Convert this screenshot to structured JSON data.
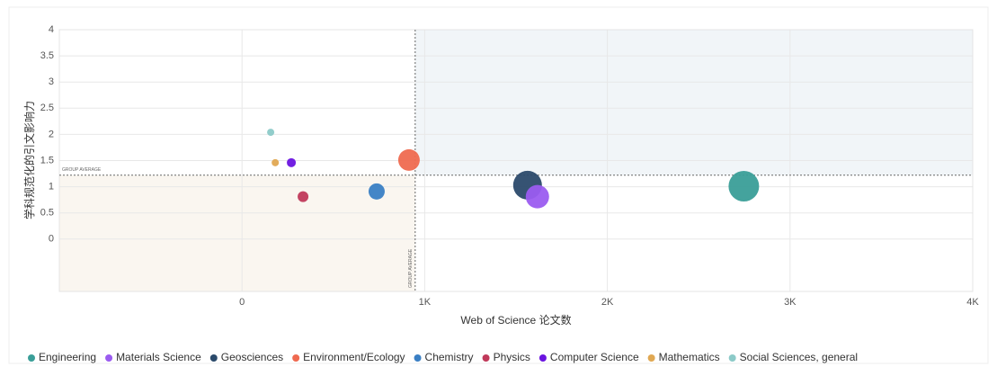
{
  "chart_data": {
    "type": "scatter",
    "xlabel": "Web of Science 论文数",
    "ylabel": "学科规范化的引文影响力",
    "xlim": [
      -1000,
      4000
    ],
    "xticks": [
      0,
      {
        "value": 1000,
        "label": "1K"
      },
      {
        "value": 2000,
        "label": "2K"
      },
      {
        "value": 3000,
        "label": "3K"
      },
      {
        "value": 4000,
        "label": "4K"
      }
    ],
    "ylim": [
      -1,
      4
    ],
    "yticks": [
      0,
      0.5,
      1,
      1.5,
      2,
      2.5,
      3,
      3.5,
      4
    ],
    "grid": true,
    "average_label": "GROUP AVERAGE",
    "x_average": 948,
    "y_average": 1.22,
    "series": [
      {
        "name": "Engineering",
        "color": "#3a9e98",
        "x": [
          2747
        ],
        "values": [
          1.01
        ],
        "sizes": [
          17
        ]
      },
      {
        "name": "Materials Science",
        "color": "#9b5cf0",
        "x": [
          1617
        ],
        "values": [
          0.81
        ],
        "sizes": [
          13
        ]
      },
      {
        "name": "Geosciences",
        "color": "#2b4a6b",
        "x": [
          1563
        ],
        "values": [
          1.03
        ],
        "sizes": [
          16
        ]
      },
      {
        "name": "Environment/Ecology",
        "color": "#ef6a50",
        "x": [
          914
        ],
        "values": [
          1.51
        ],
        "sizes": [
          12
        ]
      },
      {
        "name": "Chemistry",
        "color": "#3a7fc4",
        "x": [
          737
        ],
        "values": [
          0.91
        ],
        "sizes": [
          9
        ]
      },
      {
        "name": "Physics",
        "color": "#c0395a",
        "x": [
          334
        ],
        "values": [
          0.81
        ],
        "sizes": [
          6
        ]
      },
      {
        "name": "Computer Science",
        "color": "#6a14e0",
        "x": [
          270
        ],
        "values": [
          1.46
        ],
        "sizes": [
          5
        ]
      },
      {
        "name": "Mathematics",
        "color": "#e0a852",
        "x": [
          182
        ],
        "values": [
          1.46
        ],
        "sizes": [
          4
        ]
      },
      {
        "name": "Social Sciences, general",
        "color": "#8ccac8",
        "x": [
          157
        ],
        "values": [
          2.04
        ],
        "sizes": [
          4
        ]
      }
    ]
  }
}
